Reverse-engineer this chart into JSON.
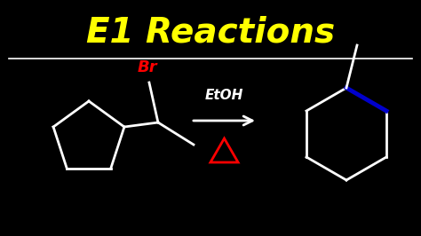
{
  "background_color": "#000000",
  "title": "E1 Reactions",
  "title_color": "#FFFF00",
  "title_fontsize": 28,
  "line_color": "#FFFFFF",
  "br_color": "#FF0000",
  "arrow_color": "#FFFFFF",
  "delta_color": "#FF0000",
  "etoh_color": "#FFFFFF",
  "double_bond_color": "#0000CC",
  "lw": 2.0
}
